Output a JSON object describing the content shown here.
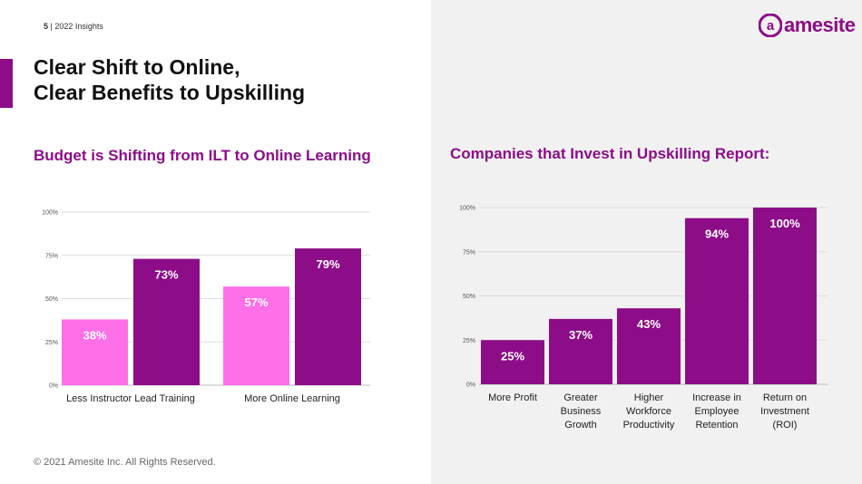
{
  "header": {
    "page_number": "5",
    "page_label": "2022 Insights",
    "title_line1": "Clear Shift to Online,",
    "title_line2": "Clear Benefits to Upskilling"
  },
  "logo": {
    "text": "amesite",
    "letter": "a"
  },
  "footer": {
    "copyright": "© 2021 Amesite Inc. All Rights Reserved."
  },
  "colors": {
    "brand": "#8c0d87",
    "light": "#ff6fe8",
    "accent_text_light": "#ffffff"
  },
  "chart_data": [
    {
      "type": "bar",
      "title": "Budget is Shifting from ILT to Online Learning",
      "categories": [
        "Less Instructor Lead Training",
        "More Online Learning"
      ],
      "series": [
        {
          "values": [
            38,
            57
          ],
          "labels": [
            "38%",
            "57%"
          ],
          "color": "#ff6fe8"
        },
        {
          "values": [
            73,
            79
          ],
          "labels": [
            "73%",
            "79%"
          ],
          "color": "#8c0d87"
        }
      ],
      "ylim": [
        0,
        100
      ],
      "yticks": [
        0,
        25,
        50,
        75,
        100
      ],
      "ytick_labels": [
        "0%",
        "25%",
        "50%",
        "75%",
        "100%"
      ],
      "grid": true
    },
    {
      "type": "bar",
      "title": "Companies that Invest in Upskilling Report:",
      "categories": [
        [
          "More Profit"
        ],
        [
          "Greater",
          "Business",
          "Growth"
        ],
        [
          "Higher",
          "Workforce",
          "Productivity"
        ],
        [
          "Increase in",
          "Employee",
          "Retention"
        ],
        [
          "Return on",
          "Investment",
          "(ROI)"
        ]
      ],
      "values": [
        25,
        37,
        43,
        94,
        100
      ],
      "labels": [
        "25%",
        "37%",
        "43%",
        "94%",
        "100%"
      ],
      "color": "#8c0d87",
      "ylim": [
        0,
        100
      ],
      "yticks": [
        0,
        25,
        50,
        75,
        100
      ],
      "ytick_labels": [
        "0%",
        "25%",
        "50%",
        "75%",
        "100%"
      ],
      "grid": true
    }
  ]
}
